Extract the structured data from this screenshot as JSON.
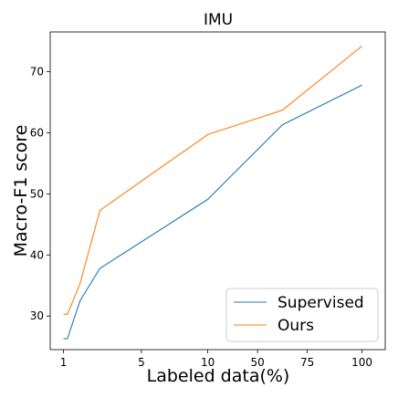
{
  "chart_data": {
    "type": "line",
    "title": "IMU",
    "xlabel": "Labeled data(%)",
    "ylabel": "Macro-F1 score",
    "x_tick_labels": [
      "1",
      "5",
      "10",
      "50",
      "75",
      "100"
    ],
    "y_ticks": [
      30,
      40,
      50,
      60,
      70
    ],
    "ylim": [
      24.5,
      76.5
    ],
    "x_scale": "categorical positions (tick labels printed on axis)",
    "grid": false,
    "legend_position": "bottom-right",
    "series": [
      {
        "name": "Supervised",
        "color": "#1f77b4",
        "x": [
          1,
          1.12,
          1.5,
          2.1,
          5.35,
          7.6,
          10
        ],
        "y": [
          26.3,
          26.3,
          32.5,
          37.8,
          49.1,
          61.3,
          67.8
        ]
      },
      {
        "name": "Ours",
        "color": "#ff7f0e",
        "x": [
          1,
          1.12,
          1.5,
          2.1,
          5.35,
          7.6,
          10
        ],
        "y": [
          30.3,
          30.3,
          35.3,
          47.3,
          59.7,
          63.7,
          74.2
        ]
      }
    ]
  }
}
